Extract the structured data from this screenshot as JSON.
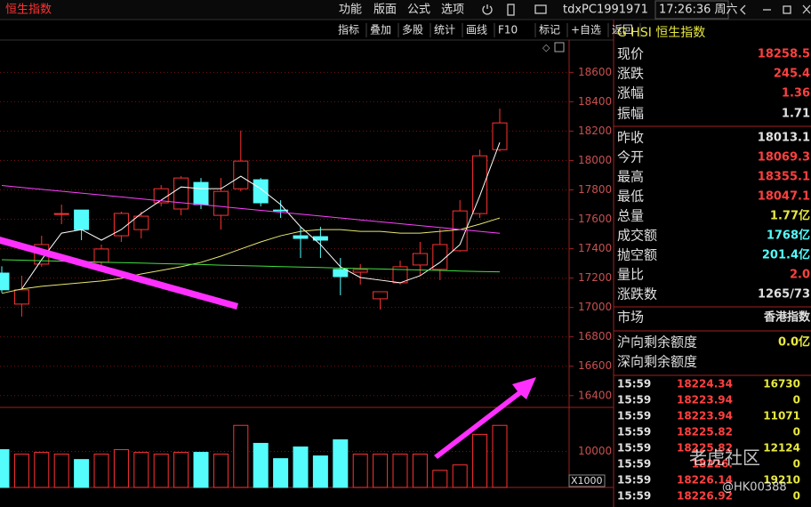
{
  "header": {
    "title": "恒生指数",
    "menu": [
      "功能",
      "版面",
      "公式",
      "选项"
    ],
    "account": "tdxPC1991971",
    "time": "17:26:36 周六"
  },
  "toolbar": [
    "指标",
    "叠加",
    "多股",
    "统计",
    "画线",
    "F10",
    "标记",
    "+自选",
    "返回"
  ],
  "chart_data": {
    "type": "candlestick",
    "open": [
      17234,
      17023,
      17295,
      17639,
      17663,
      17307,
      17488,
      17530,
      17712,
      17670,
      17851,
      17627,
      17808,
      17869,
      17663,
      17488,
      17482,
      17259,
      17240,
      17059,
      17168,
      17289,
      17259,
      17386,
      17639,
      18074
    ],
    "high": [
      17280,
      17216,
      17488,
      17700,
      17663,
      17428,
      17652,
      17652,
      17833,
      17893,
      17881,
      17881,
      18204,
      17881,
      17730,
      17549,
      17549,
      17337,
      17295,
      17095,
      17319,
      17446,
      17537,
      17730,
      18074,
      18353
    ],
    "low": [
      17100,
      16938,
      17277,
      17567,
      17458,
      17277,
      17446,
      17470,
      17688,
      17627,
      17670,
      17530,
      17790,
      17688,
      17609,
      17337,
      17337,
      17083,
      17156,
      16986,
      17156,
      17216,
      17186,
      17380,
      17609,
      18062
    ],
    "close": [
      17120,
      17120,
      17428,
      17639,
      17530,
      17398,
      17640,
      17621,
      17808,
      17881,
      17700,
      17790,
      17996,
      17712,
      17657,
      17470,
      17458,
      17210,
      17258,
      17107,
      17277,
      17367,
      17428,
      17657,
      18032,
      18256
    ],
    "ylim": [
      16320,
      18820
    ],
    "yticks": [
      16400,
      16600,
      16800,
      17000,
      17200,
      17400,
      17600,
      17800,
      18000,
      18200,
      18400,
      18600
    ],
    "grid": true,
    "colors": {
      "up": "#ff3232",
      "down": "#54fcfc"
    },
    "series": [
      {
        "color": "#ffffff",
        "values": [
          null,
          17126,
          17325,
          17506,
          17530,
          17458,
          17530,
          17639,
          17730,
          17820,
          17808,
          17808,
          17893,
          17808,
          17700,
          17549,
          17428,
          17277,
          17204,
          17186,
          17168,
          17216,
          17307,
          17428,
          17760,
          18123
        ]
      },
      {
        "color": "#e8e870",
        "values": [
          17096,
          17126,
          17144,
          17156,
          17168,
          17180,
          17198,
          17228,
          17252,
          17277,
          17307,
          17349,
          17398,
          17446,
          17488,
          17518,
          17530,
          17530,
          17518,
          17518,
          17506,
          17506,
          17518,
          17530,
          17567,
          17609
        ]
      },
      {
        "color": "#ff40ff",
        "values": [
          17830,
          17817,
          17804,
          17791,
          17778,
          17765,
          17752,
          17739,
          17726,
          17713,
          17700,
          17687,
          17674,
          17661,
          17648,
          17635,
          17622,
          17609,
          17596,
          17583,
          17570,
          17557,
          17544,
          17531,
          17518,
          17505
        ]
      },
      {
        "color": "#40e040",
        "values": [
          17325,
          17322,
          17318,
          17315,
          17312,
          17308,
          17305,
          17302,
          17298,
          17295,
          17292,
          17288,
          17285,
          17282,
          17278,
          17275,
          17272,
          17268,
          17265,
          17262,
          17258,
          17255,
          17252,
          17248,
          17245,
          17242
        ]
      }
    ],
    "volume": {
      "values": [
        10500,
        9250,
        9750,
        9250,
        7750,
        9250,
        10500,
        9750,
        9250,
        9750,
        9750,
        9250,
        17250,
        12250,
        8000,
        11250,
        8750,
        13250,
        9250,
        9250,
        9250,
        9250,
        4750,
        6250,
        14750,
        17250
      ],
      "ylim": [
        0,
        22250
      ],
      "yticks": [
        10000
      ],
      "unit": "X1000"
    }
  },
  "quote": {
    "header": "G HSI 恒生指数",
    "rows": [
      [
        "现价",
        "18258.5",
        "#ff4040"
      ],
      [
        "涨跌",
        "245.4",
        "#ff4040"
      ],
      [
        "涨幅",
        "1.36",
        "#ff4040"
      ],
      [
        "振幅",
        "1.71",
        "#e0e0e0"
      ],
      [
        "昨收",
        "18013.1",
        "#e0e0e0"
      ],
      [
        "今开",
        "18069.3",
        "#ff4040"
      ],
      [
        "最高",
        "18355.1",
        "#ff4040"
      ],
      [
        "最低",
        "18047.1",
        "#ff4040"
      ],
      [
        "总量",
        "1.77亿",
        "#e8e840"
      ],
      [
        "成交额",
        "1768亿",
        "#54fcfc"
      ],
      [
        "抛空额",
        "201.4亿",
        "#54fcfc"
      ],
      [
        "量比",
        "2.0",
        "#ff4040"
      ],
      [
        "涨跌数",
        "1265/73",
        "#e0e0e0"
      ],
      [
        "市场",
        "香港指数",
        "#e0e0e0"
      ],
      [
        "沪向剩余额度",
        "0.0亿",
        "#e8e840"
      ],
      [
        "深向剩余额度",
        null,
        "#e0e0e0"
      ]
    ]
  },
  "trades": [
    [
      "15:59",
      "18224.34",
      "16730"
    ],
    [
      "15:59",
      "18223.94",
      "0"
    ],
    [
      "15:59",
      "18223.94",
      "11071"
    ],
    [
      "15:59",
      "18225.82",
      "0"
    ],
    [
      "15:59",
      "18225.82",
      "12124"
    ],
    [
      "15:59",
      "18226.",
      "0"
    ],
    [
      "15:59",
      "18226.14",
      "19210"
    ],
    [
      "15:59",
      "18226.92",
      "0"
    ]
  ],
  "watermark": [
    "老虎社区",
    "@HK00388"
  ]
}
